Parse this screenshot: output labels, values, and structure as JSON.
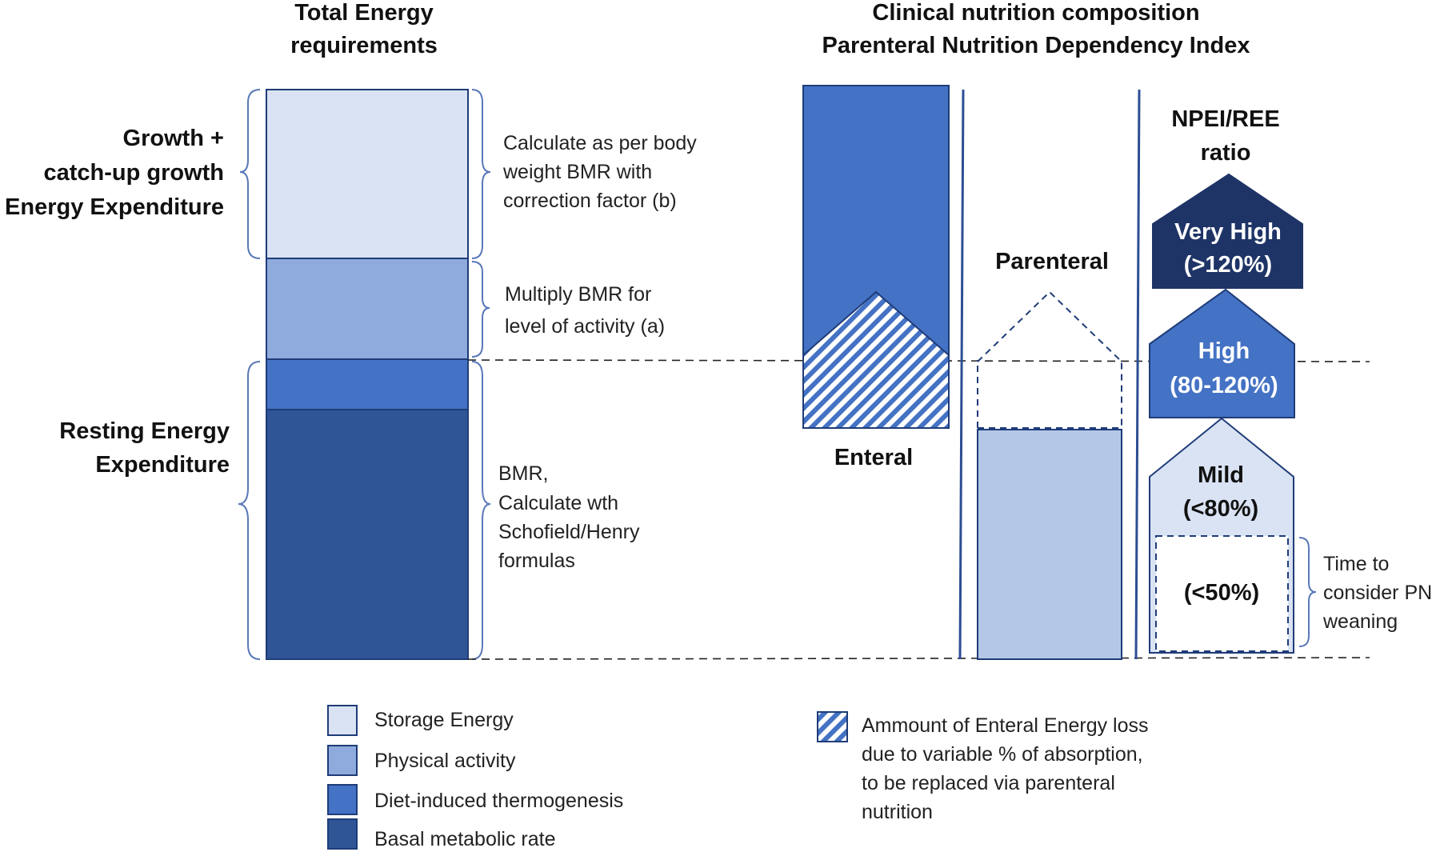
{
  "left_panel": {
    "title_line1": "Total Energy",
    "title_line2": "requirements",
    "growth_label": [
      "Growth +",
      "catch-up growth",
      "Energy Expenditure"
    ],
    "ree_label": [
      "Resting Energy",
      "Expenditure"
    ],
    "note_storage": [
      "Calculate as per body",
      "weight BMR with",
      "correction factor (b)"
    ],
    "note_activity": [
      "Multiply BMR for",
      "level of activity (a)"
    ],
    "note_bmr": [
      "BMR,",
      "Calculate wth",
      "Schofield/Henry",
      "formulas"
    ]
  },
  "right_panel": {
    "title_line1": "Clinical nutrition composition",
    "title_line2": "Parenteral Nutrition Dependency Index",
    "enteral_label": "Enteral",
    "parenteral_label": "Parenteral",
    "ratio_title": [
      "NPEI/REE",
      "ratio"
    ],
    "levels": {
      "very_high": [
        "Very High",
        "(>120%)"
      ],
      "high": [
        "High",
        "(80-120%)"
      ],
      "mild": [
        "Mild",
        "(<80%)"
      ],
      "wean": "(<50%)"
    },
    "wean_note": [
      "Time to",
      "consider PN",
      "weaning"
    ]
  },
  "legend": {
    "items": [
      {
        "label": "Storage Energy",
        "color": "#dae3f3"
      },
      {
        "label": "Physical activity",
        "color": "#8faadc"
      },
      {
        "label": "Diet-induced thermogenesis",
        "color": "#4472c4"
      },
      {
        "label": "Basal metabolic rate",
        "color": "#2f5597"
      }
    ],
    "hatch_note": [
      "Ammount of Enteral Energy loss",
      "due to variable % of absorption,",
      "to be replaced via parenteral",
      "nutrition"
    ]
  },
  "colors": {
    "storage": "#dae3f3",
    "activity": "#8faadc",
    "thermogenesis": "#4472c4",
    "bmr": "#2f5597",
    "very_high": "#1f3466",
    "high": "#4472c4",
    "mild": "#dae3f3",
    "parenteral": "#b4c7e7",
    "outline": "#1f3c78"
  }
}
